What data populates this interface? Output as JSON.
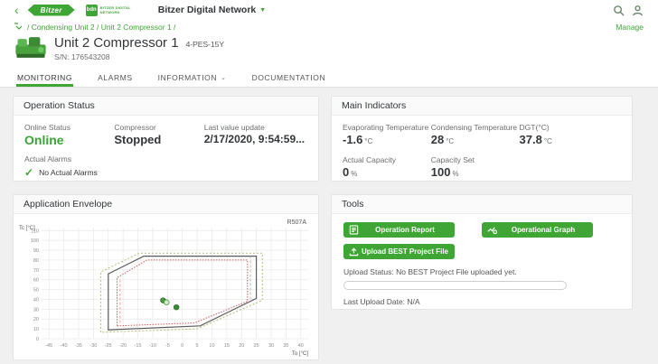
{
  "colors": {
    "brand_green": "#3fa535",
    "panel_border": "#e3e3e3",
    "page_bg": "#f0f0f0"
  },
  "header": {
    "app_title": "Bitzer Digital Network",
    "logo_text": "Bitzer",
    "bdn_logo_text": "bdn",
    "bdn_caption_line1": "BITZER DIGITAL",
    "bdn_caption_line2": "NETWORK",
    "manage_link": "Manage"
  },
  "breadcrumb": {
    "path": "/ Condensing Unit 2 / Unit 2 Compressor 1 /"
  },
  "unit": {
    "name": "Unit 2 Compressor 1",
    "model": "4-PES-15Y",
    "serial": "S/N: 176543208"
  },
  "tabs": [
    {
      "label": "MONITORING",
      "active": true
    },
    {
      "label": "ALARMS",
      "active": false
    },
    {
      "label": "INFORMATION",
      "active": false,
      "has_dropdown": true
    },
    {
      "label": "DOCUMENTATION",
      "active": false
    }
  ],
  "panels": {
    "operation_status": {
      "title": "Operation Status",
      "online_label": "Online Status",
      "online_value": "Online",
      "compressor_label": "Compressor",
      "compressor_value": "Stopped",
      "last_update_label": "Last value update",
      "last_update_value": "2/17/2020, 9:54:59...",
      "alarms_label": "Actual Alarms",
      "alarms_value": "No Actual Alarms"
    },
    "main_indicators": {
      "title": "Main Indicators",
      "items": [
        {
          "label": "Evaporating Temperature",
          "value": "-1.6",
          "unit": "°C"
        },
        {
          "label": "Condensing Temperature",
          "value": "28",
          "unit": "°C"
        },
        {
          "label": "DGT(°C)",
          "value": "37.8",
          "unit": "°C"
        },
        {
          "label": "Actual Capacity",
          "value": "0",
          "unit": "%"
        },
        {
          "label": "Capacity Set",
          "value": "100",
          "unit": "%"
        }
      ]
    },
    "application_envelope": {
      "title": "Application Envelope",
      "chart_data": {
        "type": "area",
        "title": "Application Envelope",
        "refrigerant_label": "R507A",
        "xlabel": "To [°C]",
        "ylabel": "Tc [°C]",
        "xlim": [
          -47.5,
          42.5
        ],
        "ylim": [
          0,
          113
        ],
        "x_ticks": [
          -45,
          -40,
          -35,
          -30,
          -25,
          -20,
          -15,
          -10,
          -5,
          0,
          5,
          10,
          15,
          20,
          25,
          30,
          35,
          40
        ],
        "y_ticks": [
          0,
          10,
          20,
          30,
          40,
          50,
          60,
          70,
          80,
          90,
          100,
          110
        ],
        "grid": true,
        "envelopes": [
          {
            "name": "extended-limit",
            "color": "#b9b876",
            "dash": "2,2",
            "width": 1,
            "points": [
              [
                -27.5,
                6.5
              ],
              [
                -27.5,
                68
              ],
              [
                -14.5,
                87
              ],
              [
                27,
                87
              ],
              [
                27,
                39
              ],
              [
                5,
                10
              ],
              [
                -27.5,
                6.5
              ]
            ]
          },
          {
            "name": "standard-envelope",
            "color": "#5a5a5a",
            "dash": "",
            "width": 1.2,
            "points": [
              [
                -25,
                9
              ],
              [
                -25,
                66
              ],
              [
                -13,
                84
              ],
              [
                25,
                84
              ],
              [
                25,
                41
              ],
              [
                6,
                13
              ],
              [
                -25,
                9
              ]
            ]
          },
          {
            "name": "inner-limit",
            "color": "#cc5a5a",
            "dash": "1.5,1.5",
            "width": 1,
            "points": [
              [
                -22,
                13
              ],
              [
                -22,
                62
              ],
              [
                -12,
                80
              ],
              [
                22,
                80
              ],
              [
                22,
                38
              ],
              [
                4,
                16
              ],
              [
                -22,
                13
              ]
            ]
          }
        ],
        "guide_lines": [
          {
            "name": "left-capacity-limit",
            "x": -21,
            "y1": 16,
            "y2": 62,
            "color": "#e5a6a6",
            "dash": "3,2"
          },
          {
            "name": "right-capacity-limit",
            "x": 23,
            "y1": 40,
            "y2": 84,
            "color": "#bdbdbd",
            "dash": "3,2"
          }
        ],
        "operating_points": [
          {
            "x": -6.5,
            "y": 39,
            "fill": "#4a9b3f",
            "stroke": "#2f6b28"
          },
          {
            "x": -5.3,
            "y": 37,
            "fill": "#d8e8d2",
            "stroke": "#4a9b3f"
          },
          {
            "x": -2,
            "y": 32,
            "fill": "#3c8a34",
            "stroke": "#2f6b28"
          }
        ]
      }
    },
    "tools": {
      "title": "Tools",
      "buttons": [
        {
          "label": "Operation Report"
        },
        {
          "label": "Operational Graph"
        },
        {
          "label": "Upload BEST Project File"
        }
      ],
      "upload_status": "Upload Status: No BEST Project File uploaded yet.",
      "progress_percent": 0,
      "last_upload": "Last Upload Date: N/A"
    }
  }
}
